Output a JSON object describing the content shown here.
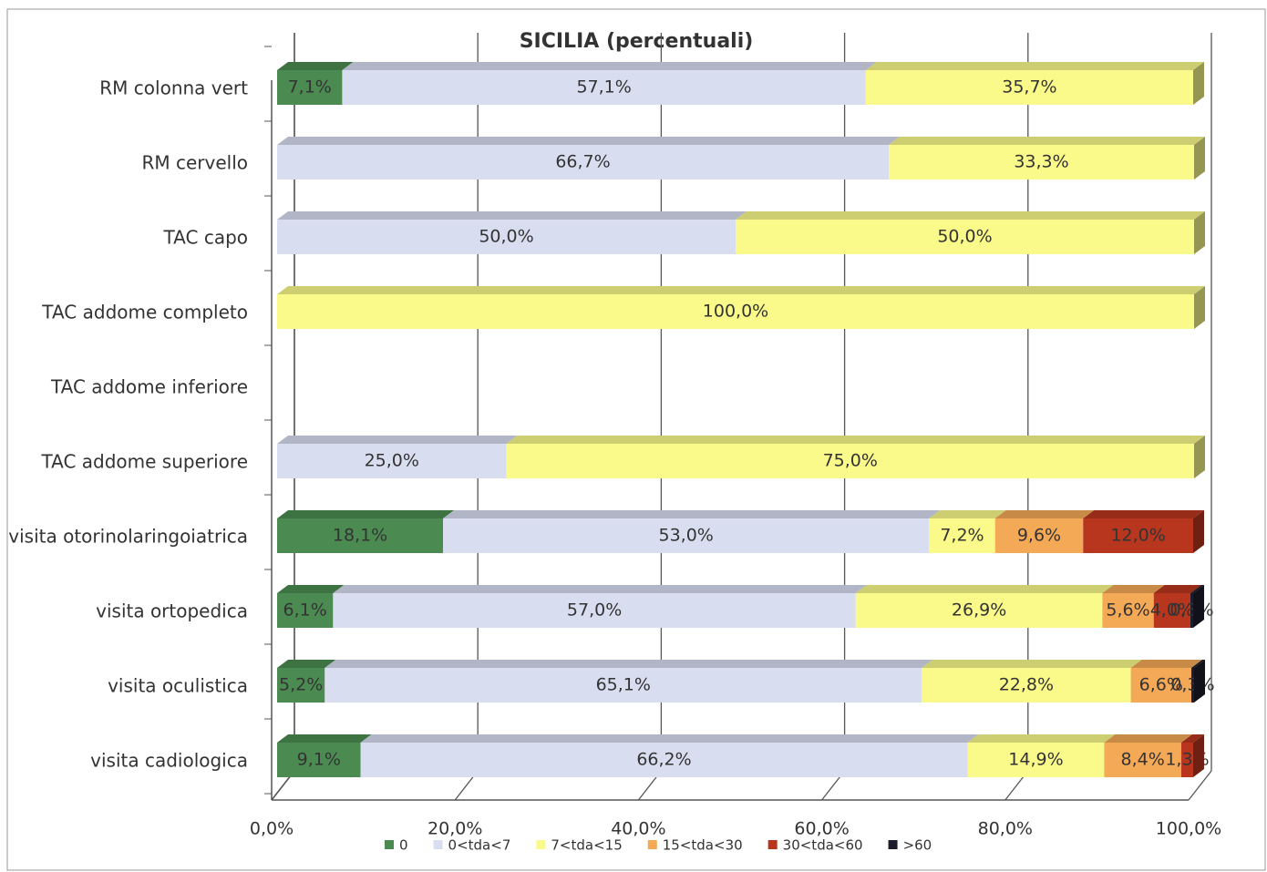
{
  "chart_data": {
    "type": "stacked_bar_horizontal",
    "title": "SICILIA (percentuali)",
    "categories": [
      "RM colonna vert",
      "RM cervello",
      "TAC capo",
      "TAC addome completo",
      "TAC addome inferiore",
      "TAC addome superiore",
      "visita otorinolaringoiatrica",
      "visita ortopedica",
      "visita oculistica",
      "visita cadiologica"
    ],
    "series": [
      {
        "name": "0",
        "color": "#4b8b52",
        "values": [
          7.1,
          null,
          null,
          null,
          null,
          null,
          18.1,
          6.1,
          5.2,
          9.1
        ],
        "value_labels": [
          "7,1%",
          null,
          null,
          null,
          null,
          null,
          "18,1%",
          "6,1%",
          "5,2%",
          "9,1%"
        ]
      },
      {
        "name": "0<tda<7",
        "color": "#d9ddf0",
        "values": [
          57.1,
          66.7,
          50.0,
          null,
          null,
          25.0,
          53.0,
          57.0,
          65.1,
          66.2
        ],
        "value_labels": [
          "57,1%",
          "66,7%",
          "50,0%",
          null,
          null,
          "25,0%",
          "53,0%",
          "57,0%",
          "65,1%",
          "66,2%"
        ]
      },
      {
        "name": "7<tda<15",
        "color": "#fafa8a",
        "values": [
          35.7,
          33.3,
          50.0,
          100.0,
          null,
          75.0,
          7.2,
          26.9,
          22.8,
          14.9
        ],
        "value_labels": [
          "35,7%",
          "33,3%",
          "50,0%",
          "100,0%",
          null,
          "75,0%",
          "7,2%",
          "26,9%",
          "22,8%",
          "14,9%"
        ]
      },
      {
        "name": "15<tda<30",
        "color": "#f4a957",
        "values": [
          null,
          null,
          null,
          null,
          null,
          null,
          9.6,
          5.6,
          6.6,
          8.4
        ],
        "value_labels": [
          null,
          null,
          null,
          null,
          null,
          null,
          "9,6%",
          "5,6%",
          "6,6%",
          "8,4%"
        ]
      },
      {
        "name": "30<tda<60",
        "color": "#b8361e",
        "values": [
          null,
          null,
          null,
          null,
          null,
          null,
          12.0,
          4.0,
          null,
          1.3
        ],
        "value_labels": [
          null,
          null,
          null,
          null,
          null,
          null,
          "12,0%",
          "4,0%",
          null,
          "1,3%"
        ]
      },
      {
        "name": ">60",
        "color": "#1c1c2c",
        "values": [
          null,
          null,
          null,
          null,
          null,
          null,
          null,
          0.3,
          0.3,
          null
        ],
        "value_labels": [
          null,
          null,
          null,
          null,
          null,
          null,
          null,
          "0,3%",
          "0,3%",
          null
        ]
      }
    ],
    "xlim": [
      0,
      100
    ],
    "xticks": [
      {
        "value": 0,
        "label": "0,0%"
      },
      {
        "value": 20,
        "label": "20,0%"
      },
      {
        "value": 40,
        "label": "40,0%"
      },
      {
        "value": 60,
        "label": "60,0%"
      },
      {
        "value": 80,
        "label": "80,0%"
      },
      {
        "value": 100,
        "label": "100,0%"
      }
    ],
    "grid": true,
    "legend": "bottom"
  }
}
